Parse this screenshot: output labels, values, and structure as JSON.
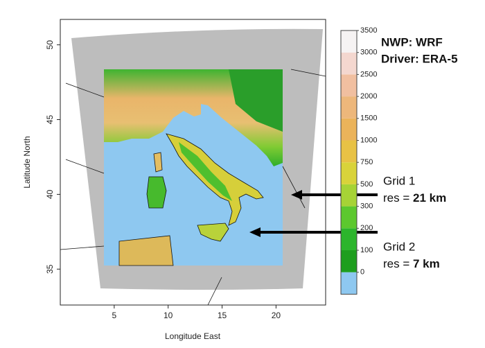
{
  "chart_data": {
    "type": "map",
    "xlabel": "Longitude East",
    "ylabel": "Latitude North",
    "xlim": [
      0,
      24.6
    ],
    "ylim": [
      32.6,
      51.7
    ],
    "xticks": [
      5,
      10,
      15,
      20
    ],
    "yticks": [
      35,
      40,
      45,
      50
    ],
    "colorbar": {
      "levels": [
        0,
        100,
        200,
        300,
        500,
        750,
        1000,
        1500,
        2000,
        2500,
        3000,
        3500
      ],
      "colors": [
        "#1e9e1e",
        "#2cb52c",
        "#5cc82e",
        "#a6d336",
        "#d9d33a",
        "#e8c245",
        "#ebb35a",
        "#edb77b",
        "#f1bfa0",
        "#f4d7cf",
        "#f6f3f3"
      ],
      "below_color": "#8ec8f0"
    },
    "annotations": {
      "model": "NWP: WRF",
      "driver": "Driver: ERA-5",
      "grid1": {
        "name": "Grid 1",
        "res_prefix": "res = ",
        "res": "21 km"
      },
      "grid2": {
        "name": "Grid 2",
        "res_prefix": "res = ",
        "res": "7 km"
      }
    }
  }
}
